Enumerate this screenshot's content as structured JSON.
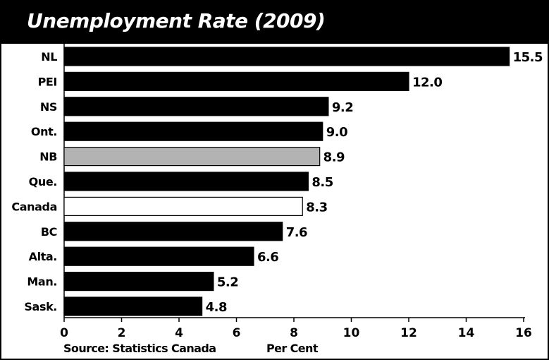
{
  "chart_data": {
    "type": "bar",
    "orientation": "horizontal",
    "title": "Unemployment Rate (2009)",
    "xlabel": "Per Cent",
    "source": "Source: Statistics Canada",
    "categories": [
      "NL",
      "PEI",
      "NS",
      "Ont.",
      "NB",
      "Que.",
      "Canada",
      "BC",
      "Alta.",
      "Man.",
      "Sask."
    ],
    "values": [
      15.5,
      12.0,
      9.2,
      9.0,
      8.9,
      8.5,
      8.3,
      7.6,
      6.6,
      5.2,
      4.8
    ],
    "value_labels": [
      "15.5",
      "12.0",
      "9.2",
      "9.0",
      "8.9",
      "8.5",
      "8.3",
      "7.6",
      "6.6",
      "5.2",
      "4.8"
    ],
    "bar_colors": [
      "#000000",
      "#000000",
      "#000000",
      "#000000",
      "#b3b3b3",
      "#000000",
      "#ffffff",
      "#000000",
      "#000000",
      "#000000",
      "#000000"
    ],
    "xlim": [
      0,
      16
    ],
    "xticks": [
      0,
      2,
      4,
      6,
      8,
      10,
      12,
      14,
      16
    ],
    "grid": false,
    "legend": "none"
  }
}
